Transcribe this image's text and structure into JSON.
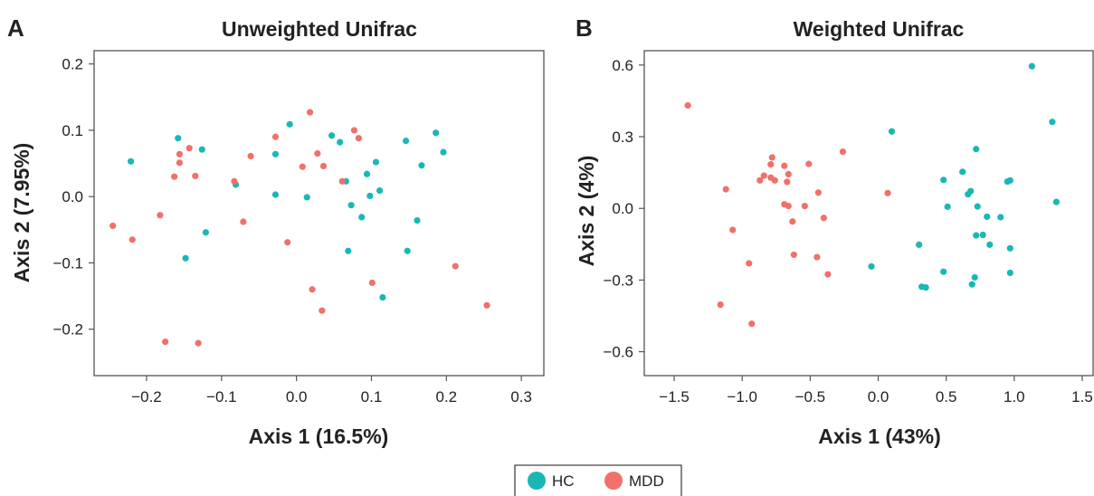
{
  "legend": {
    "entries": [
      {
        "label": "HC",
        "color": "#19B8B4"
      },
      {
        "label": "MDD",
        "color": "#F2706A"
      }
    ]
  },
  "colors": {
    "HC": "#19B8B4",
    "MDD": "#F2706A"
  },
  "chart_data": [
    {
      "type": "scatter",
      "panel": "A",
      "title": "Unweighted Unifrac",
      "xlabel": "Axis 1 (16.5%)",
      "ylabel": "Axis 2 (7.95%)",
      "xlim": [
        -0.27,
        0.33
      ],
      "ylim": [
        -0.27,
        0.22
      ],
      "xticks": [
        -0.2,
        -0.1,
        0.0,
        0.1,
        0.2,
        0.3
      ],
      "xtick_labels": [
        "−0.2",
        "−0.1",
        "0.0",
        "0.1",
        "0.2",
        "0.3"
      ],
      "yticks": [
        0.2,
        0.1,
        0.0,
        -0.1,
        -0.2
      ],
      "ytick_labels": [
        "0.2",
        "0.1",
        "0.0",
        "−0.1",
        "−0.2"
      ],
      "grid": false,
      "series": [
        {
          "name": "HC",
          "color": "#19B8B4",
          "points": [
            [
              -0.221,
              0.053
            ],
            [
              -0.158,
              0.088
            ],
            [
              -0.126,
              0.071
            ],
            [
              -0.148,
              -0.093
            ],
            [
              -0.121,
              -0.054
            ],
            [
              -0.081,
              0.018
            ],
            [
              -0.028,
              0.064
            ],
            [
              -0.028,
              0.003
            ],
            [
              -0.009,
              0.109
            ],
            [
              0.014,
              -0.001
            ],
            [
              0.047,
              0.092
            ],
            [
              0.058,
              0.082
            ],
            [
              0.066,
              0.023
            ],
            [
              0.069,
              -0.082
            ],
            [
              0.073,
              -0.013
            ],
            [
              0.087,
              -0.031
            ],
            [
              0.094,
              0.034
            ],
            [
              0.098,
              0.001
            ],
            [
              0.106,
              0.052
            ],
            [
              0.111,
              0.009
            ],
            [
              0.115,
              -0.152
            ],
            [
              0.146,
              0.084
            ],
            [
              0.148,
              -0.082
            ],
            [
              0.161,
              -0.036
            ],
            [
              0.167,
              0.047
            ],
            [
              0.186,
              0.096
            ],
            [
              0.196,
              0.067
            ]
          ]
        },
        {
          "name": "MDD",
          "color": "#F2706A",
          "points": [
            [
              -0.245,
              -0.044
            ],
            [
              -0.219,
              -0.065
            ],
            [
              -0.182,
              -0.028
            ],
            [
              -0.175,
              -0.219
            ],
            [
              -0.163,
              0.03
            ],
            [
              -0.156,
              0.064
            ],
            [
              -0.156,
              0.051
            ],
            [
              -0.143,
              0.073
            ],
            [
              -0.135,
              0.031
            ],
            [
              -0.131,
              -0.221
            ],
            [
              -0.083,
              0.023
            ],
            [
              -0.071,
              -0.038
            ],
            [
              -0.061,
              0.061
            ],
            [
              -0.028,
              0.09
            ],
            [
              -0.012,
              -0.069
            ],
            [
              0.008,
              0.045
            ],
            [
              0.018,
              0.127
            ],
            [
              0.021,
              -0.14
            ],
            [
              0.028,
              0.065
            ],
            [
              0.034,
              -0.172
            ],
            [
              0.036,
              0.046
            ],
            [
              0.061,
              0.023
            ],
            [
              0.077,
              0.1
            ],
            [
              0.083,
              0.088
            ],
            [
              0.101,
              -0.13
            ],
            [
              0.212,
              -0.105
            ],
            [
              0.254,
              -0.164
            ]
          ]
        }
      ]
    },
    {
      "type": "scatter",
      "panel": "B",
      "title": "Weighted Unifrac",
      "xlabel": "Axis 1 (43%)",
      "ylabel": "Axis 2 (4%)",
      "xlim": [
        -1.72,
        1.58
      ],
      "ylim": [
        -0.7,
        0.66
      ],
      "xticks": [
        -1.5,
        -1.0,
        -0.5,
        0.0,
        0.5,
        1.0,
        1.5
      ],
      "xtick_labels": [
        "−1.5",
        "−1.0",
        "−0.5",
        "0.0",
        "0.5",
        "1.0",
        "1.5"
      ],
      "yticks": [
        0.6,
        0.3,
        0.0,
        -0.3,
        -0.6
      ],
      "ytick_labels": [
        "0.6",
        "0.3",
        "0.0",
        "−0.3",
        "−0.6"
      ],
      "grid": false,
      "series": [
        {
          "name": "HC",
          "color": "#19B8B4",
          "points": [
            [
              1.13,
              0.595
            ],
            [
              1.28,
              0.362
            ],
            [
              0.1,
              0.322
            ],
            [
              0.72,
              0.248
            ],
            [
              0.62,
              0.153
            ],
            [
              0.48,
              0.119
            ],
            [
              0.68,
              0.072
            ],
            [
              0.66,
              0.059
            ],
            [
              0.95,
              0.112
            ],
            [
              0.97,
              0.117
            ],
            [
              0.51,
              0.007
            ],
            [
              0.73,
              0.008
            ],
            [
              0.8,
              -0.035
            ],
            [
              0.9,
              -0.037
            ],
            [
              1.31,
              0.027
            ],
            [
              0.72,
              -0.113
            ],
            [
              0.77,
              -0.111
            ],
            [
              0.82,
              -0.152
            ],
            [
              0.97,
              -0.167
            ],
            [
              0.3,
              -0.152
            ],
            [
              0.32,
              -0.328
            ],
            [
              0.35,
              -0.331
            ],
            [
              0.48,
              -0.265
            ],
            [
              0.71,
              -0.289
            ],
            [
              0.69,
              -0.318
            ],
            [
              0.97,
              -0.27
            ],
            [
              -0.05,
              -0.243
            ]
          ]
        },
        {
          "name": "MDD",
          "color": "#F2706A",
          "points": [
            [
              -1.4,
              0.431
            ],
            [
              -0.78,
              0.213
            ],
            [
              -0.79,
              0.184
            ],
            [
              -0.69,
              0.178
            ],
            [
              -0.51,
              0.186
            ],
            [
              -0.26,
              0.237
            ],
            [
              -0.84,
              0.137
            ],
            [
              -0.79,
              0.129
            ],
            [
              -0.76,
              0.117
            ],
            [
              -0.87,
              0.117
            ],
            [
              -0.66,
              0.143
            ],
            [
              -0.67,
              0.111
            ],
            [
              -0.44,
              0.066
            ],
            [
              0.07,
              0.064
            ],
            [
              -1.12,
              0.08
            ],
            [
              -0.69,
              0.017
            ],
            [
              -0.66,
              0.01
            ],
            [
              -0.54,
              0.01
            ],
            [
              -0.4,
              -0.04
            ],
            [
              -1.07,
              -0.09
            ],
            [
              -0.63,
              -0.055
            ],
            [
              -0.62,
              -0.194
            ],
            [
              -0.45,
              -0.204
            ],
            [
              -0.37,
              -0.276
            ],
            [
              -0.95,
              -0.23
            ],
            [
              -1.16,
              -0.403
            ],
            [
              -0.93,
              -0.483
            ]
          ]
        }
      ]
    }
  ]
}
